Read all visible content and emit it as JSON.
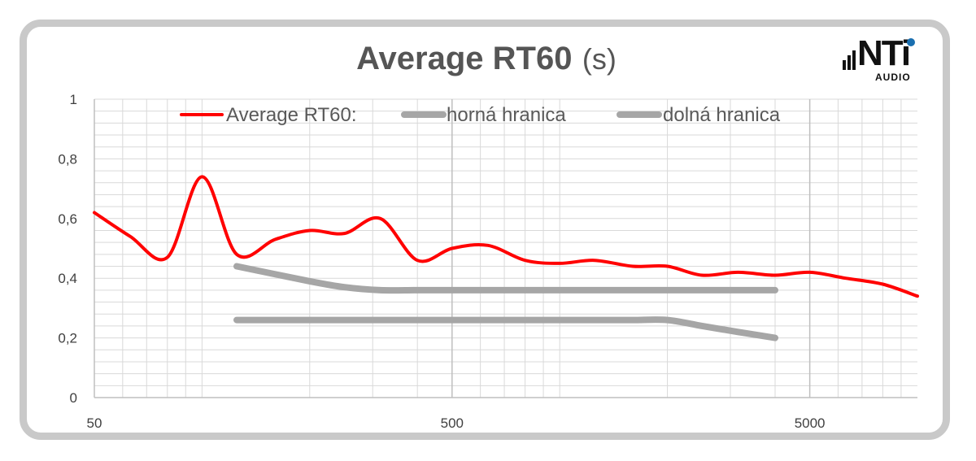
{
  "logo": {
    "main": "NTi",
    "sub": "AUDIO"
  },
  "chart_data": {
    "type": "line",
    "title": "Average RT60",
    "title_unit": "(s)",
    "x_scale": "log",
    "xlim": [
      50,
      10000
    ],
    "ylim": [
      0,
      1
    ],
    "x_ticks": [
      50,
      500,
      5000
    ],
    "x_tick_labels": [
      "50",
      "500",
      "5000"
    ],
    "y_ticks": [
      0,
      0.2,
      0.4,
      0.6,
      0.8,
      1
    ],
    "y_tick_labels": [
      "0",
      "0,2",
      "0,4",
      "0,6",
      "0,8",
      "1"
    ],
    "grid": true,
    "legend_position": "top",
    "colors": {
      "red": "#ff0000",
      "gray": "#a6a6a6"
    },
    "series": [
      {
        "name": "Average RT60:",
        "color": "#ff0000",
        "x": [
          50,
          63,
          80,
          100,
          125,
          160,
          200,
          250,
          315,
          400,
          500,
          630,
          800,
          1000,
          1250,
          1600,
          2000,
          2500,
          3150,
          4000,
          5000,
          6300,
          8000,
          10000
        ],
        "y": [
          0.62,
          0.54,
          0.47,
          0.74,
          0.48,
          0.53,
          0.56,
          0.55,
          0.6,
          0.46,
          0.5,
          0.51,
          0.46,
          0.45,
          0.46,
          0.44,
          0.44,
          0.41,
          0.42,
          0.41,
          0.42,
          0.4,
          0.38,
          0.34
        ]
      },
      {
        "name": "horná hranica",
        "color": "#a6a6a6",
        "x": [
          125,
          200,
          250,
          315,
          400,
          500,
          630,
          800,
          1000,
          1250,
          1600,
          2000,
          2500,
          3150,
          4000
        ],
        "y": [
          0.44,
          0.39,
          0.37,
          0.36,
          0.36,
          0.36,
          0.36,
          0.36,
          0.36,
          0.36,
          0.36,
          0.36,
          0.36,
          0.36,
          0.36
        ]
      },
      {
        "name": "dolná hranica",
        "color": "#a6a6a6",
        "x": [
          125,
          160,
          200,
          250,
          315,
          400,
          500,
          630,
          800,
          1000,
          1250,
          1600,
          2000,
          2500,
          3150,
          4000
        ],
        "y": [
          0.26,
          0.26,
          0.26,
          0.26,
          0.26,
          0.26,
          0.26,
          0.26,
          0.26,
          0.26,
          0.26,
          0.26,
          0.26,
          0.24,
          0.22,
          0.2
        ]
      }
    ]
  }
}
